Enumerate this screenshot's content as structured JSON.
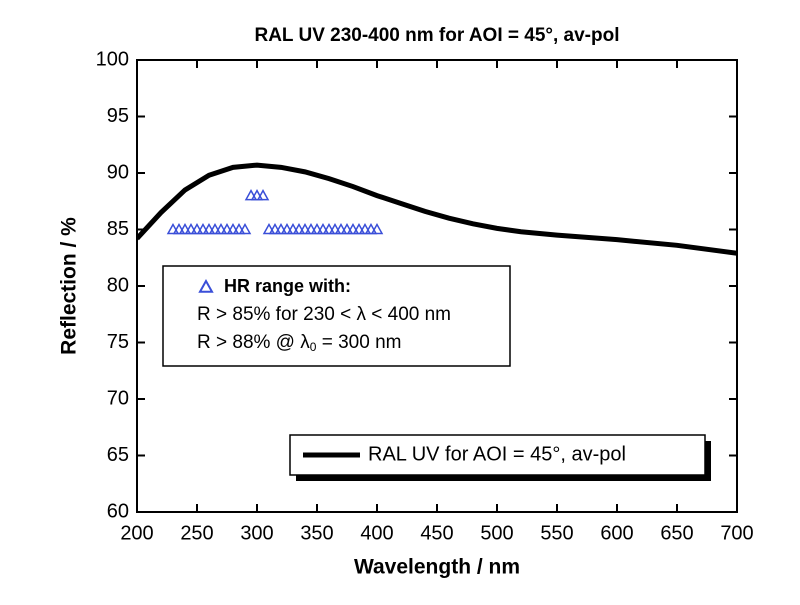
{
  "chart_data": {
    "type": "line",
    "title": "RAL UV 230-400 nm for AOI = 45°, av-pol",
    "x_label": "Wavelength / nm",
    "y_label": "Reflection / %",
    "xlim": [
      200,
      700
    ],
    "ylim": [
      60,
      100
    ],
    "xticks": [
      200,
      250,
      300,
      350,
      400,
      450,
      500,
      550,
      600,
      650,
      700
    ],
    "yticks": [
      60,
      65,
      70,
      75,
      80,
      85,
      90,
      95,
      100
    ],
    "series": [
      {
        "name": "RAL UV for AOI = 45°, av-pol",
        "type": "line",
        "color": "#000000",
        "x": [
          200,
          220,
          240,
          260,
          280,
          300,
          320,
          340,
          360,
          380,
          400,
          420,
          440,
          460,
          480,
          500,
          520,
          550,
          600,
          650,
          700
        ],
        "values": [
          84.2,
          86.5,
          88.5,
          89.8,
          90.5,
          90.7,
          90.5,
          90.1,
          89.5,
          88.8,
          88.0,
          87.3,
          86.6,
          86.0,
          85.5,
          85.1,
          84.8,
          84.5,
          84.1,
          83.6,
          82.9
        ]
      },
      {
        "name": "HR range with:",
        "type": "scatter",
        "color": "#3a4fd8",
        "x": [
          230,
          235,
          240,
          245,
          250,
          255,
          260,
          265,
          270,
          275,
          280,
          285,
          290,
          310,
          315,
          320,
          325,
          330,
          335,
          340,
          345,
          350,
          355,
          360,
          365,
          370,
          375,
          380,
          385,
          390,
          395,
          400,
          295,
          300,
          305
        ],
        "values": [
          85,
          85,
          85,
          85,
          85,
          85,
          85,
          85,
          85,
          85,
          85,
          85,
          85,
          85,
          85,
          85,
          85,
          85,
          85,
          85,
          85,
          85,
          85,
          85,
          85,
          85,
          85,
          85,
          85,
          85,
          85,
          85,
          88,
          88,
          88
        ]
      }
    ],
    "annotations": [
      [
        "R > 85% for 230 < λ < 400 nm"
      ],
      [
        "R > 88% @ λ",
        "0",
        " = 300 nm"
      ]
    ]
  }
}
